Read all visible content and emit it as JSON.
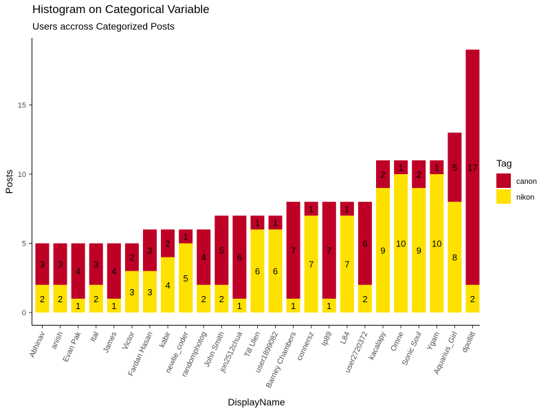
{
  "chart_data": {
    "type": "bar",
    "stacked": true,
    "title": "Histogram on Categorical Variable",
    "subtitle": "Users accross Categorized Posts",
    "xlabel": "DisplayName",
    "ylabel": "Posts",
    "ylim": [
      0,
      19
    ],
    "yticks": [
      0,
      5,
      10,
      15
    ],
    "grid": false,
    "legend": {
      "title": "Tag",
      "position": "right"
    },
    "categories": [
      "Abhinav",
      "anish",
      "Evan Pak",
      "Ital",
      "James",
      "Victor",
      "Fardan Hasan",
      "kabir",
      "newlie_coder",
      "randomphotog",
      "John Smith",
      "jon2512chua",
      "Till Ulen",
      "user1899082",
      "Barney Chambers",
      "connersz",
      "Ip89",
      "L84",
      "user2720372",
      "kacalapy",
      "Omne",
      "Sonic Soul",
      "Ygam",
      "Aquarius_Girl",
      "dpollitt"
    ],
    "series": [
      {
        "name": "nikon",
        "color": "#FFE100",
        "values": [
          2,
          2,
          1,
          2,
          1,
          3,
          3,
          4,
          5,
          2,
          2,
          1,
          6,
          6,
          1,
          7,
          1,
          7,
          2,
          9,
          10,
          9,
          10,
          8,
          2
        ]
      },
      {
        "name": "canon",
        "color": "#BE0026",
        "values": [
          3,
          3,
          4,
          3,
          4,
          2,
          3,
          2,
          1,
          4,
          5,
          6,
          1,
          1,
          7,
          1,
          7,
          1,
          6,
          2,
          1,
          2,
          1,
          5,
          17
        ]
      }
    ]
  }
}
